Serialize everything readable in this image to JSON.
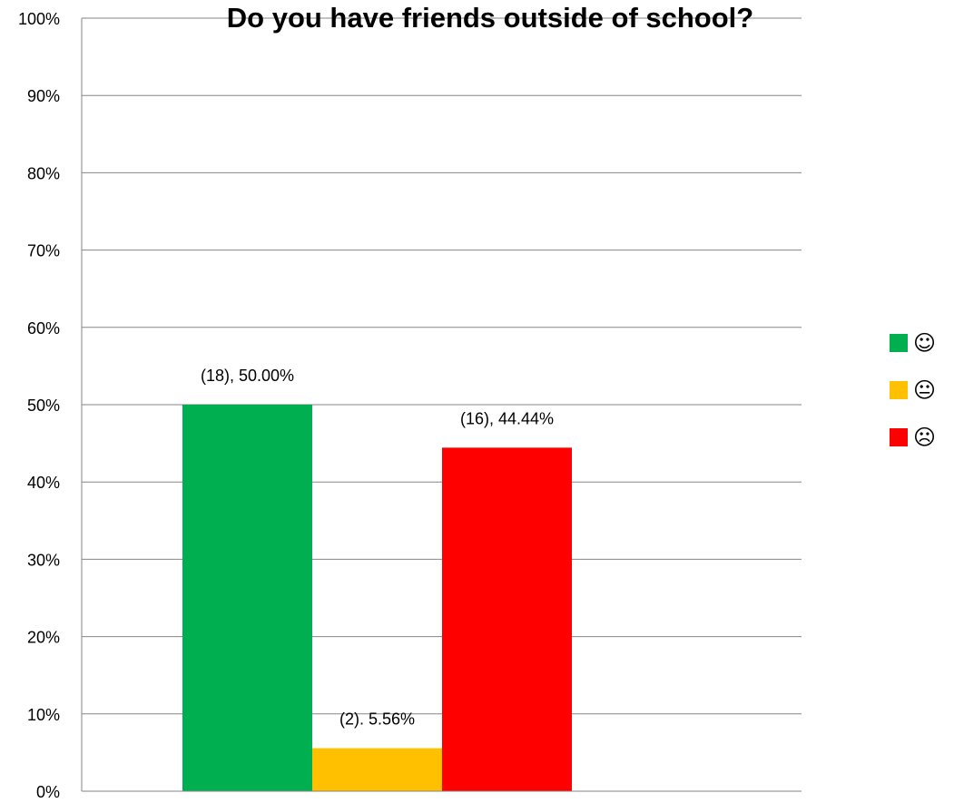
{
  "chart_data": {
    "type": "bar",
    "title": "Do you have friends outside of school?",
    "xlabel": "",
    "ylabel": "",
    "ylim": [
      0,
      100
    ],
    "yticks": [
      "0%",
      "10%",
      "20%",
      "30%",
      "40%",
      "50%",
      "60%",
      "70%",
      "80%",
      "90%",
      "100%"
    ],
    "grid": true,
    "legend_position": "right",
    "series": [
      {
        "name": "☺",
        "value": 50.0,
        "data_label": "(18), 50.00%",
        "color": "#00b050",
        "icon": "smiley-face-icon"
      },
      {
        "name": "😐",
        "value": 5.56,
        "data_label": "(2). 5.56%",
        "color": "#ffc000",
        "icon": "neutral-face-icon"
      },
      {
        "name": "☹",
        "value": 44.44,
        "data_label": "(16), 44.44%",
        "color": "#ff0000",
        "icon": "frowning-face-icon"
      }
    ]
  }
}
